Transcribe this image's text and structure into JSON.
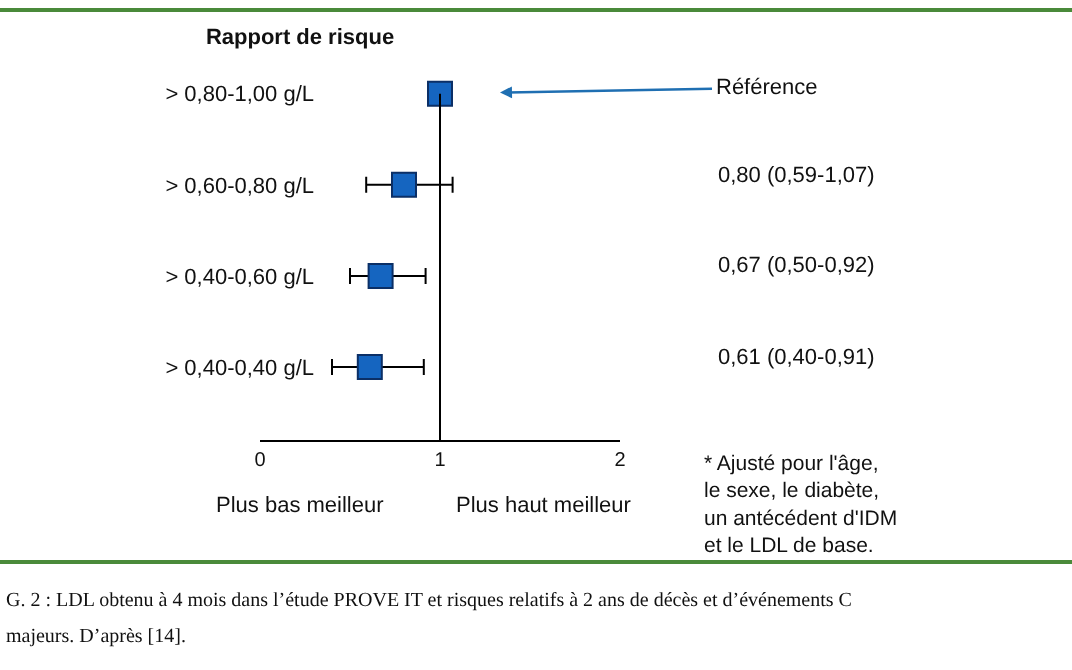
{
  "chart_data": {
    "type": "scatter",
    "orientation": "horizontal",
    "title": "Rapport de risque",
    "categories": [
      "> 0,80-1,00 g/L",
      "> 0,60-0,80 g/L",
      "> 0,40-0,60 g/L",
      "> 0,40-0,40 g/L"
    ],
    "values": [
      1,
      0.8,
      0.67,
      0.61
    ],
    "errors": [
      null,
      [
        0.59,
        1.07
      ],
      [
        0.5,
        0.92
      ],
      [
        0.4,
        0.91
      ]
    ],
    "value_labels": [
      null,
      "0,80 (0,59-1,07)",
      "0,67 (0,50-0,92)",
      "0,61 (0,40-0,91)"
    ],
    "color": "#1565c0",
    "marker": "square",
    "xlim": [
      0,
      2
    ],
    "xticks": [
      0,
      1,
      2
    ],
    "ref_lines": [
      {
        "axis": "x",
        "value": 1,
        "color": "#000000"
      }
    ],
    "annotations": [
      {
        "text": "Référence",
        "x": 1,
        "y": "> 0,80-1,00 g/L"
      },
      "Plus bas meilleur",
      "Plus haut meilleur",
      "* Ajusté pour l'âge,\nle sexe, le diabète,\nun antécédent d'IDM\net le LDL de base.",
      "G. 2 : LDL obtenu à 4 mois dans l’étude PROVE IT et risques relatifs à 2 ans de décès et d’événements C",
      "majeurs. D’après [14]."
    ],
    "grid": false,
    "legend": false
  }
}
